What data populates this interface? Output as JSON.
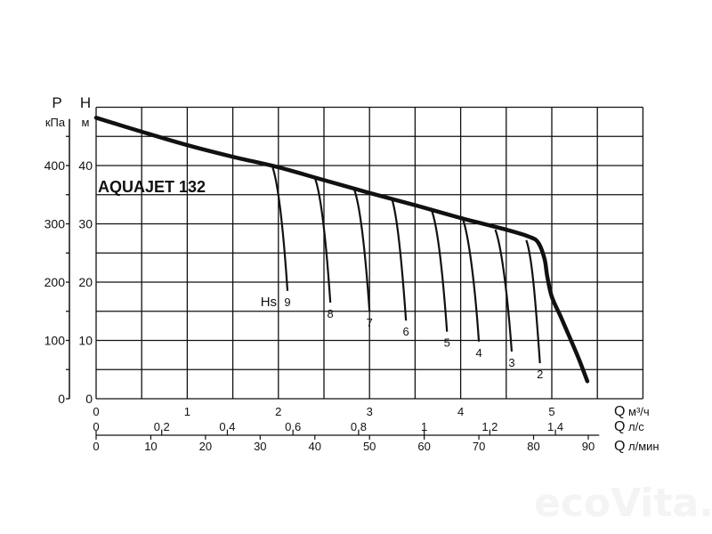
{
  "chart_data": {
    "type": "line",
    "title": "AQUAJET 132",
    "left_axes": [
      {
        "symbol": "P",
        "unit": "кПа",
        "ticks": [
          0,
          100,
          200,
          300,
          400
        ],
        "range": [
          0,
          500
        ]
      },
      {
        "symbol": "H",
        "unit": "м",
        "ticks": [
          0,
          10,
          20,
          30,
          40
        ],
        "range": [
          0,
          50
        ]
      }
    ],
    "bottom_axes": [
      {
        "symbol": "Q",
        "unit": "м³/ч",
        "ticks": [
          "0",
          "1",
          "2",
          "3",
          "4",
          "5"
        ],
        "tick_values": [
          0,
          1,
          2,
          3,
          4,
          5
        ],
        "range": [
          0,
          6
        ]
      },
      {
        "symbol": "Q",
        "unit": "л/с",
        "ticks": [
          "0",
          "0,2",
          "0,4",
          "0,6",
          "0,8",
          "1",
          "1,2",
          "1,4"
        ],
        "tick_values": [
          0,
          0.2,
          0.4,
          0.6,
          0.8,
          1,
          1.2,
          1.4
        ]
      },
      {
        "symbol": "Q",
        "unit": "л/мин",
        "ticks": [
          "0",
          "10",
          "20",
          "30",
          "40",
          "50",
          "60",
          "70",
          "80",
          "90"
        ],
        "tick_values": [
          0,
          10,
          20,
          30,
          40,
          50,
          60,
          70,
          80,
          90
        ]
      }
    ],
    "grid": true,
    "main_curve": {
      "x_unit": "м³/ч",
      "y_unit": "м",
      "points": [
        [
          0,
          48.2
        ],
        [
          0.5,
          45.8
        ],
        [
          1,
          43.5
        ],
        [
          1.5,
          41.5
        ],
        [
          2,
          39.7
        ],
        [
          2.5,
          37.5
        ],
        [
          3,
          35.3
        ],
        [
          3.5,
          33.2
        ],
        [
          4,
          31
        ],
        [
          4.5,
          29
        ],
        [
          4.75,
          27.8
        ],
        [
          4.85,
          26.8
        ],
        [
          4.92,
          24
        ],
        [
          4.95,
          21
        ],
        [
          5.0,
          17.5
        ],
        [
          5.1,
          14
        ],
        [
          5.2,
          10.4
        ],
        [
          5.3,
          6.7
        ],
        [
          5.39,
          3
        ]
      ]
    },
    "hs_label": "Hs",
    "hs_curves": [
      {
        "label": "9",
        "start": [
          1.93,
          40
        ],
        "end": [
          2.1,
          18.5
        ]
      },
      {
        "label": "8",
        "start": [
          2.4,
          37.9
        ],
        "end": [
          2.57,
          16.5
        ]
      },
      {
        "label": "7",
        "start": [
          2.83,
          36
        ],
        "end": [
          3.0,
          15
        ]
      },
      {
        "label": "6",
        "start": [
          3.24,
          34.5
        ],
        "end": [
          3.4,
          13.4
        ]
      },
      {
        "label": "5",
        "start": [
          3.68,
          32.4
        ],
        "end": [
          3.85,
          11.5
        ]
      },
      {
        "label": "4",
        "start": [
          4.02,
          31
        ],
        "end": [
          4.2,
          9.8
        ]
      },
      {
        "label": "3",
        "start": [
          4.38,
          29
        ],
        "end": [
          4.56,
          8.1
        ]
      },
      {
        "label": "2",
        "start": [
          4.72,
          27.2
        ],
        "end": [
          4.87,
          6.1
        ]
      }
    ],
    "line_color": "#111111",
    "grid_color": "#111111"
  },
  "watermark": "ecoVita.ru"
}
